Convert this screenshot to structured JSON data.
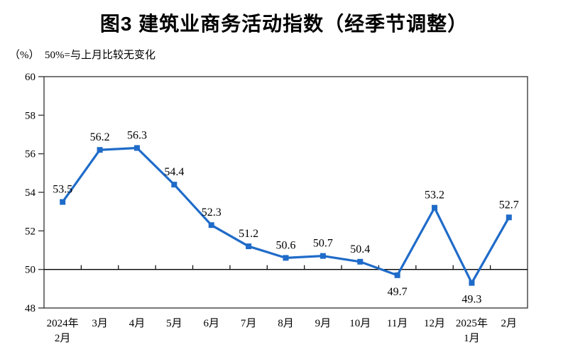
{
  "title": "图3  建筑业商务活动指数（经季节调整）",
  "subtitle": "（%）  50%=与上月比较无变化",
  "chart_data": {
    "type": "line",
    "title": "图3 建筑业商务活动指数（经季节调整）",
    "unit_note": "（%） 50%=与上月比较无变化",
    "series_name": "建筑业商务活动指数",
    "categories": [
      [
        "2024年",
        "2月"
      ],
      [
        "3月"
      ],
      [
        "4月"
      ],
      [
        "5月"
      ],
      [
        "6月"
      ],
      [
        "7月"
      ],
      [
        "8月"
      ],
      [
        "9月"
      ],
      [
        "10月"
      ],
      [
        "11月"
      ],
      [
        "12月"
      ],
      [
        "2025年",
        "1月"
      ],
      [
        "2月"
      ]
    ],
    "values": [
      53.5,
      56.2,
      56.3,
      54.4,
      52.3,
      51.2,
      50.6,
      50.7,
      50.4,
      49.7,
      53.2,
      49.3,
      52.7
    ],
    "data_labels": [
      "53.5",
      "56.2",
      "56.3",
      "54.4",
      "52.3",
      "51.2",
      "50.6",
      "50.7",
      "50.4",
      "49.7",
      "53.2",
      "49.3",
      "52.7"
    ],
    "ylim": [
      48,
      60
    ],
    "yticks": [
      48,
      50,
      52,
      54,
      56,
      58,
      60
    ],
    "reference_line": 50,
    "label_below_threshold": 50,
    "grid": "off",
    "legend": "none",
    "line_color": "#1F6BC9",
    "marker": "square",
    "marker_size": 8,
    "axis_color": "#3f3f3f",
    "ref_line_color": "#000000",
    "text_color": "#000000"
  }
}
